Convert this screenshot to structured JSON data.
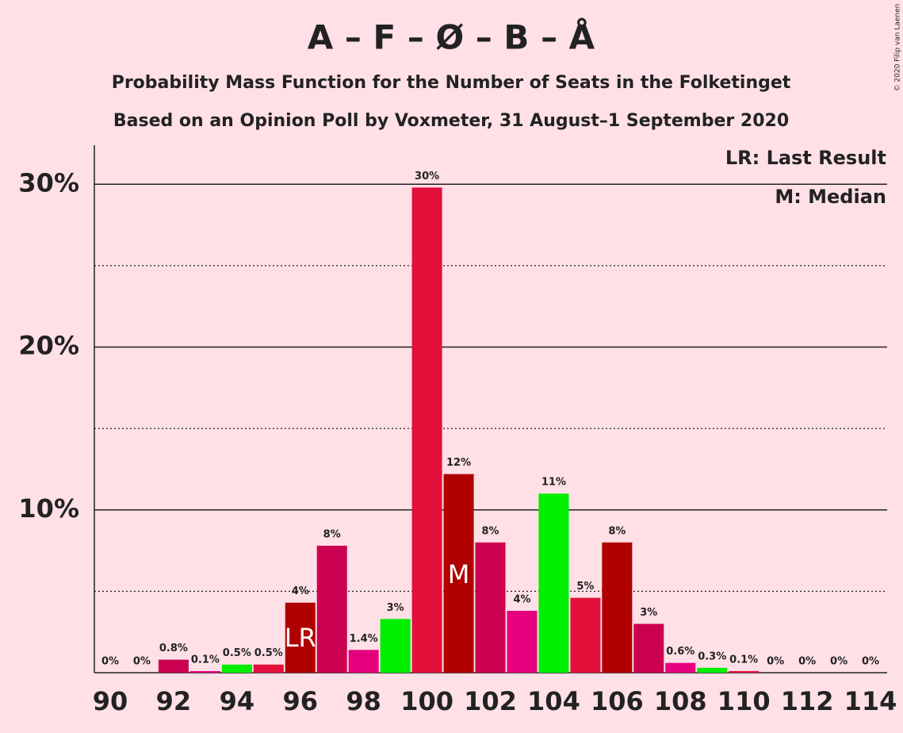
{
  "chart_data": {
    "type": "bar",
    "title": "A – F – Ø – B – Å",
    "subtitle": "Probability Mass Function for the Number of Seats in the Folketinget",
    "subtitle2": "Based on an Opinion Poll by Voxmeter, 31 August–1 September 2020",
    "copyright": "© 2020 Filip van Laenen",
    "categories": [
      90,
      null,
      92,
      null,
      94,
      null,
      96,
      null,
      98,
      null,
      100,
      null,
      102,
      null,
      104,
      null,
      106,
      null,
      108,
      null,
      110,
      null,
      112,
      null,
      114
    ],
    "xlim": [
      90,
      114
    ],
    "values": [
      0,
      0,
      0.8,
      0.1,
      0.5,
      0.5,
      4.3,
      7.8,
      1.4,
      3.3,
      29.8,
      12.2,
      8.0,
      3.8,
      11.0,
      4.6,
      8.0,
      3.0,
      0.6,
      0.3,
      0.1,
      0,
      0,
      0,
      0
    ],
    "value_labels": [
      "0%",
      "0%",
      "0.8%",
      "0.1%",
      "0.5%",
      "0.5%",
      "4%",
      "8%",
      "1.4%",
      "3%",
      "30%",
      "12%",
      "8%",
      "4%",
      "11%",
      "5%",
      "8%",
      "3%",
      "0.6%",
      "0.3%",
      "0.1%",
      "0%",
      "0%",
      "0%",
      "0%"
    ],
    "colors": [
      "#cc0050",
      "#e5007e",
      "#cc0050",
      "#e5007e",
      "#00ee00",
      "#e3103c",
      "#b00000",
      "#cc0050",
      "#e5007e",
      "#00ee00",
      "#e3103c",
      "#b00000",
      "#cc0050",
      "#e5007e",
      "#00ee00",
      "#e3103c",
      "#b00000",
      "#cc0050",
      "#e5007e",
      "#00ee00",
      "#e3103c",
      "#b00000",
      "#cc0050",
      "#e5007e",
      "#00ee00"
    ],
    "ylim": [
      0,
      32.4
    ],
    "yticks": [
      {
        "value": 10,
        "label": "10%"
      },
      {
        "value": 20,
        "label": "20%"
      },
      {
        "value": 30,
        "label": "30%"
      }
    ],
    "minor_yticks": [
      5,
      15,
      25
    ],
    "grid": true,
    "last_result": {
      "seat": 96,
      "label": "LR",
      "legend": "LR: Last Result"
    },
    "median": {
      "seat": 101,
      "label": "M",
      "legend": "M: Median"
    }
  }
}
